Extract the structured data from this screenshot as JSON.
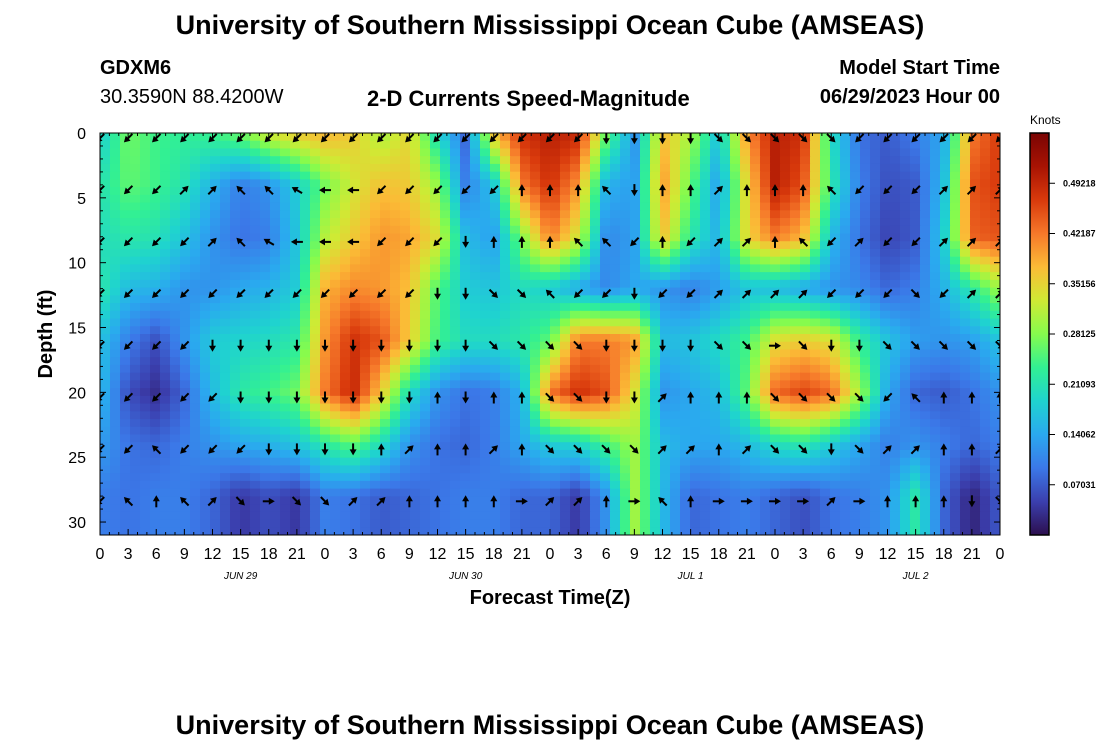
{
  "header": {
    "title": "University of Southern Mississippi Ocean Cube (AMSEAS)",
    "station_id": "GDXM6",
    "coords": "30.3590N  88.4200W",
    "product": "2-D Currents Speed-Magnitude",
    "model_start_label": "Model Start Time",
    "model_start_value": "06/29/2023 Hour 00"
  },
  "footer": {
    "title": "University of Southern Mississippi Ocean Cube (AMSEAS)"
  },
  "chart_data": {
    "type": "heatmap",
    "title": "2-D Currents Speed-Magnitude",
    "xlabel": "Forecast Time(Z)",
    "ylabel": "Depth (ft)",
    "x_tick_labels": [
      "0",
      "3",
      "6",
      "9",
      "12",
      "15",
      "18",
      "21",
      "0",
      "3",
      "6",
      "9",
      "12",
      "15",
      "18",
      "21",
      "0",
      "3",
      "6",
      "9",
      "12",
      "15",
      "18",
      "21",
      "0",
      "3",
      "6",
      "9",
      "12",
      "15",
      "18",
      "21",
      "0"
    ],
    "date_labels": [
      "JUN 29",
      "JUN 30",
      "JUL 1",
      "JUL 2"
    ],
    "x_hours_range": [
      0,
      96
    ],
    "y_ticks": [
      0,
      5,
      10,
      15,
      20,
      25,
      30
    ],
    "ylim": [
      0,
      31
    ],
    "colorbar": {
      "unit": "Knots",
      "tick_labels": [
        "0.49218",
        "0.42187",
        "0.35156",
        "0.28125",
        "0.21093",
        "0.14062",
        "0.07031"
      ],
      "range": [
        0,
        0.5625
      ],
      "colors": [
        "#2c0f4e",
        "#3b3fae",
        "#3b78e8",
        "#2aa9ef",
        "#1fd3cf",
        "#32f093",
        "#86fb4d",
        "#cfea34",
        "#fbbb36",
        "#f6782a",
        "#d93a0c",
        "#a81303",
        "#7a0403"
      ]
    },
    "depth_levels": [
      0,
      4,
      8,
      12,
      16,
      20,
      24,
      28
    ],
    "time_hours": [
      0,
      3,
      6,
      9,
      12,
      15,
      18,
      21,
      24,
      27,
      30,
      33,
      36,
      39,
      42,
      45,
      48,
      51,
      54,
      57,
      60,
      63,
      66,
      69,
      72,
      75,
      78,
      81,
      84,
      87,
      90,
      93,
      96
    ],
    "speed": [
      [
        0.18,
        0.27,
        0.24,
        0.23,
        0.24,
        0.27,
        0.33,
        0.36,
        0.38,
        0.36,
        0.3,
        0.35,
        0.2,
        0.08,
        0.37,
        0.48,
        0.5,
        0.49,
        0.27,
        0.12,
        0.37,
        0.3,
        0.17,
        0.4,
        0.5,
        0.48,
        0.2,
        0.09,
        0.07,
        0.1,
        0.14,
        0.42,
        0.47
      ],
      [
        0.21,
        0.26,
        0.24,
        0.21,
        0.15,
        0.1,
        0.12,
        0.18,
        0.27,
        0.33,
        0.37,
        0.36,
        0.29,
        0.1,
        0.17,
        0.42,
        0.48,
        0.4,
        0.15,
        0.13,
        0.4,
        0.26,
        0.13,
        0.35,
        0.5,
        0.45,
        0.22,
        0.1,
        0.06,
        0.07,
        0.16,
        0.45,
        0.47
      ],
      [
        0.2,
        0.22,
        0.21,
        0.17,
        0.12,
        0.09,
        0.1,
        0.17,
        0.31,
        0.36,
        0.4,
        0.39,
        0.34,
        0.16,
        0.13,
        0.28,
        0.42,
        0.33,
        0.11,
        0.13,
        0.37,
        0.22,
        0.15,
        0.35,
        0.42,
        0.38,
        0.16,
        0.09,
        0.05,
        0.07,
        0.18,
        0.44,
        0.45
      ],
      [
        0.22,
        0.16,
        0.15,
        0.12,
        0.12,
        0.14,
        0.15,
        0.18,
        0.38,
        0.41,
        0.4,
        0.37,
        0.25,
        0.18,
        0.17,
        0.2,
        0.18,
        0.14,
        0.11,
        0.14,
        0.12,
        0.1,
        0.13,
        0.17,
        0.16,
        0.14,
        0.12,
        0.11,
        0.08,
        0.1,
        0.15,
        0.22,
        0.3
      ],
      [
        0.17,
        0.1,
        0.06,
        0.12,
        0.18,
        0.19,
        0.2,
        0.22,
        0.4,
        0.48,
        0.45,
        0.36,
        0.24,
        0.2,
        0.2,
        0.22,
        0.26,
        0.42,
        0.42,
        0.4,
        0.16,
        0.17,
        0.2,
        0.24,
        0.34,
        0.36,
        0.34,
        0.23,
        0.17,
        0.13,
        0.12,
        0.13,
        0.17
      ],
      [
        0.16,
        0.06,
        0.03,
        0.08,
        0.16,
        0.22,
        0.24,
        0.27,
        0.42,
        0.49,
        0.36,
        0.2,
        0.12,
        0.09,
        0.1,
        0.15,
        0.42,
        0.48,
        0.45,
        0.34,
        0.12,
        0.14,
        0.16,
        0.26,
        0.43,
        0.46,
        0.43,
        0.3,
        0.14,
        0.08,
        0.07,
        0.09,
        0.12
      ],
      [
        0.13,
        0.09,
        0.08,
        0.1,
        0.12,
        0.14,
        0.15,
        0.17,
        0.22,
        0.26,
        0.2,
        0.12,
        0.09,
        0.08,
        0.1,
        0.14,
        0.18,
        0.19,
        0.24,
        0.3,
        0.16,
        0.14,
        0.14,
        0.16,
        0.2,
        0.22,
        0.18,
        0.14,
        0.1,
        0.12,
        0.1,
        0.08,
        0.1
      ],
      [
        0.1,
        0.09,
        0.1,
        0.1,
        0.08,
        0.04,
        0.06,
        0.04,
        0.1,
        0.09,
        0.07,
        0.08,
        0.09,
        0.1,
        0.1,
        0.08,
        0.08,
        0.04,
        0.12,
        0.3,
        0.16,
        0.08,
        0.09,
        0.1,
        0.08,
        0.06,
        0.09,
        0.1,
        0.12,
        0.22,
        0.08,
        0.02,
        0.07
      ]
    ],
    "direction_deg": [
      [
        225,
        225,
        225,
        225,
        225,
        225,
        225,
        225,
        225,
        225,
        225,
        225,
        225,
        225,
        225,
        225,
        225,
        225,
        180,
        180,
        180,
        180,
        135,
        135,
        135,
        135,
        135,
        225,
        225,
        225,
        225,
        225,
        225
      ],
      [
        225,
        225,
        225,
        45,
        45,
        315,
        315,
        300,
        270,
        270,
        225,
        225,
        225,
        225,
        225,
        0,
        0,
        0,
        315,
        180,
        0,
        0,
        45,
        0,
        0,
        0,
        315,
        225,
        225,
        225,
        45,
        45,
        45
      ],
      [
        225,
        225,
        225,
        225,
        45,
        315,
        300,
        270,
        270,
        270,
        225,
        225,
        225,
        180,
        0,
        0,
        0,
        315,
        315,
        225,
        0,
        225,
        45,
        45,
        0,
        315,
        225,
        45,
        225,
        225,
        45,
        45,
        45
      ],
      [
        225,
        225,
        225,
        225,
        225,
        225,
        225,
        225,
        225,
        225,
        225,
        225,
        180,
        180,
        135,
        135,
        315,
        225,
        225,
        180,
        225,
        225,
        45,
        45,
        45,
        45,
        225,
        225,
        225,
        135,
        225,
        45,
        45
      ],
      [
        225,
        225,
        225,
        225,
        180,
        180,
        180,
        180,
        180,
        180,
        180,
        180,
        180,
        180,
        135,
        135,
        135,
        135,
        180,
        180,
        180,
        180,
        135,
        135,
        90,
        135,
        180,
        180,
        135,
        135,
        135,
        135,
        135
      ],
      [
        225,
        225,
        225,
        225,
        225,
        180,
        180,
        180,
        180,
        180,
        180,
        180,
        0,
        180,
        0,
        0,
        135,
        135,
        180,
        180,
        45,
        0,
        0,
        0,
        135,
        135,
        135,
        135,
        225,
        315,
        0,
        0,
        0
      ],
      [
        225,
        225,
        315,
        225,
        225,
        225,
        180,
        180,
        180,
        180,
        0,
        45,
        0,
        0,
        45,
        0,
        135,
        135,
        135,
        135,
        45,
        45,
        0,
        45,
        135,
        135,
        180,
        135,
        45,
        45,
        0,
        0,
        45
      ],
      [
        225,
        315,
        0,
        315,
        45,
        135,
        90,
        135,
        135,
        45,
        45,
        0,
        0,
        0,
        0,
        90,
        45,
        45,
        0,
        90,
        315,
        0,
        90,
        90,
        90,
        90,
        45,
        90,
        0,
        0,
        0,
        180,
        135
      ]
    ]
  }
}
